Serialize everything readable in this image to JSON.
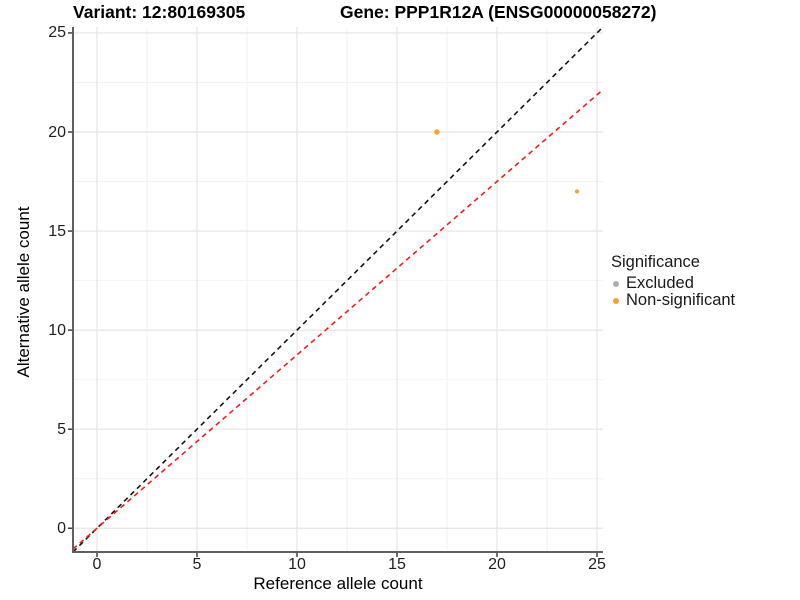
{
  "chart_data": {
    "type": "scatter",
    "title_left": "Variant: 12:80169305",
    "title_right": "Gene: PPP1R12A (ENSG00000058272)",
    "xlabel": "Reference allele count",
    "ylabel": "Alternative allele count",
    "xlim": [
      -1.2,
      25.3
    ],
    "ylim": [
      -1.2,
      25.3
    ],
    "x_ticks": [
      0,
      5,
      10,
      15,
      20,
      25
    ],
    "y_ticks": [
      0,
      5,
      10,
      15,
      20,
      25
    ],
    "x_minor_ticks": [
      2.5,
      7.5,
      12.5,
      17.5,
      22.5
    ],
    "y_minor_ticks": [
      2.5,
      7.5,
      12.5,
      17.5,
      22.5
    ],
    "grid": "major and minor, light gray on white panel",
    "colors": {
      "major_grid": "#E4E4E4",
      "minor_grid": "#F2F2F2",
      "axis_line": "#606060",
      "tick_mark": "#333333",
      "identity_line": "#141414",
      "ratio_line": "#F01F1A",
      "non_significant": "#F9A02B",
      "excluded": "#AFAFAF"
    },
    "series": [
      {
        "name": "Non-significant",
        "color": "#F9A02B",
        "points": [
          {
            "x": 17,
            "y": 20,
            "size": 2.7
          },
          {
            "x": 24,
            "y": 17,
            "size": 2.1
          }
        ]
      },
      {
        "name": "Excluded",
        "color": "#AFAFAF",
        "points": []
      }
    ],
    "reference_lines": [
      {
        "name": "identity-line",
        "slope": 1,
        "intercept": 0,
        "color": "#141414",
        "style": "dashed"
      },
      {
        "name": "expected-ratio-line",
        "slope": 0.875,
        "intercept": 0,
        "color": "#F01F1A",
        "style": "dashed"
      }
    ],
    "legend": {
      "title": "Significance",
      "position": "right",
      "items": [
        {
          "label": "Excluded",
          "color": "#AFAFAF"
        },
        {
          "label": "Non-significant",
          "color": "#F9A02B"
        }
      ]
    }
  }
}
